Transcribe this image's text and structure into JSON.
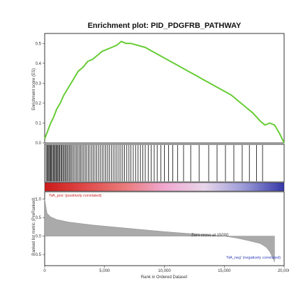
{
  "header_text": "",
  "chart_data": {
    "type": "line",
    "title": "Enrichment plot: PID_PDGFRB_PATHWAY",
    "enrichment_panel": {
      "ylabel": "Enrichment score (ES)",
      "ylim": [
        0.0,
        0.55
      ],
      "yticks": [
        0.0,
        0.1,
        0.2,
        0.3,
        0.4,
        0.5
      ],
      "ytick_labels": [
        "0.0",
        "0.1",
        "0.2",
        "0.3",
        "0.4",
        "0.5"
      ],
      "line_color": "#66cc33",
      "x": [
        0,
        250,
        500,
        750,
        1000,
        1300,
        1600,
        2000,
        2400,
        2800,
        3200,
        3600,
        4000,
        4400,
        4800,
        5200,
        5600,
        6000,
        6400,
        6800,
        7200,
        7800,
        8400,
        9000,
        9600,
        10200,
        10800,
        11400,
        12000,
        12600,
        13200,
        13800,
        14400,
        15000,
        15600,
        16200,
        16800,
        17400,
        18000,
        18400,
        18800,
        19200,
        19600,
        20000
      ],
      "y": [
        0.02,
        0.06,
        0.1,
        0.13,
        0.17,
        0.2,
        0.24,
        0.28,
        0.32,
        0.36,
        0.38,
        0.41,
        0.42,
        0.44,
        0.46,
        0.47,
        0.48,
        0.49,
        0.51,
        0.5,
        0.5,
        0.49,
        0.48,
        0.46,
        0.44,
        0.42,
        0.4,
        0.38,
        0.36,
        0.34,
        0.32,
        0.3,
        0.28,
        0.26,
        0.24,
        0.21,
        0.18,
        0.15,
        0.11,
        0.09,
        0.1,
        0.09,
        0.05,
        0.0
      ]
    },
    "hits": [
      120,
      210,
      280,
      350,
      420,
      500,
      560,
      640,
      720,
      800,
      870,
      950,
      1030,
      1100,
      1180,
      1260,
      1350,
      1430,
      1520,
      1610,
      1700,
      1790,
      1880,
      1980,
      2080,
      2180,
      2280,
      2400,
      2520,
      2640,
      2760,
      2880,
      3000,
      3120,
      3250,
      3380,
      3500,
      3640,
      3780,
      3920,
      4060,
      4200,
      4350,
      4500,
      4650,
      4800,
      4950,
      5100,
      5250,
      5400,
      5560,
      5720,
      5880,
      6040,
      6200,
      6360,
      6520,
      6680,
      6860,
      7040,
      7200,
      7400,
      7600,
      7800,
      8000,
      8200,
      8400,
      8650,
      8900,
      9150,
      9400,
      9700,
      10000,
      10350,
      10700,
      11100,
      11600,
      12200,
      12900,
      13700,
      14400,
      15100,
      15800,
      16500,
      17100,
      17700,
      18200
    ],
    "gradient_colors": [
      "#cc1a1a",
      "#e04848",
      "#ea7a7a",
      "#f0a8d0",
      "#e8d6ea",
      "#9a9ad8",
      "#3636a8"
    ],
    "top_label": "'NA_pos' (positively correlated)",
    "bottom_label": "'NA_neg' (negatively correlated)",
    "ranked_panel": {
      "ylabel": "Ranked list metric (PreRanked)",
      "ylim": [
        -0.8,
        1.2
      ],
      "yticks": [
        1.0,
        0.5,
        0.0,
        -0.5
      ],
      "ytick_labels": [
        "1.0",
        "0.5",
        "0.0",
        "-0.5"
      ],
      "x": [
        0,
        200,
        500,
        1000,
        2000,
        3000,
        4000,
        6000,
        8000,
        10000,
        12000,
        14000,
        15000,
        16000,
        17000,
        18000,
        18500,
        18800,
        19000,
        19200
      ],
      "y": [
        1.0,
        0.62,
        0.52,
        0.45,
        0.38,
        0.34,
        0.3,
        0.24,
        0.18,
        0.12,
        0.07,
        0.03,
        0.0,
        -0.05,
        -0.12,
        -0.2,
        -0.3,
        -0.42,
        -0.55,
        -0.7
      ],
      "zero_cross_label": "Zero cross at 15000",
      "fill_color": "#aaaaaa"
    },
    "xlabel": "Rank in Ordered Dataset",
    "xlim": [
      0,
      20000
    ],
    "xticks": [
      0,
      5000,
      10000,
      15000,
      20000
    ],
    "xtick_labels": [
      "0",
      "5,000",
      "10,000",
      "15,000",
      "20,000"
    ]
  }
}
